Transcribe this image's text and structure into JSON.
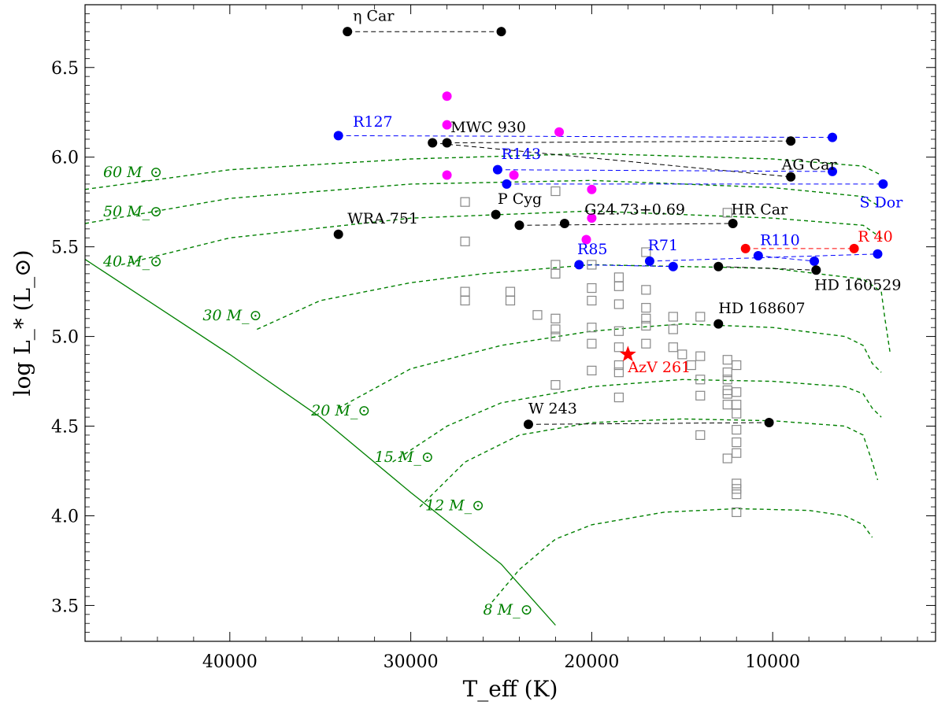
{
  "chart_data": {
    "type": "scatter",
    "title": "",
    "xlabel": "T_eff (K)",
    "ylabel": "log L_* (L_⊙)",
    "xlim": [
      48000,
      1000
    ],
    "ylim": [
      3.3,
      6.85
    ],
    "x_ticks": [
      40000,
      30000,
      20000,
      10000
    ],
    "y_ticks": [
      3.5,
      4.0,
      4.5,
      5.0,
      5.5,
      6.0,
      6.5
    ],
    "x_tick_labels": [
      "40000",
      "30000",
      "20000",
      "10000"
    ],
    "y_tick_labels": [
      "3.5",
      "4.0",
      "4.5",
      "5.0",
      "5.5",
      "6.0",
      "6.5"
    ],
    "colors": {
      "black": "#000000",
      "blue": "#0000ff",
      "red": "#ff0000",
      "magenta": "#ff00ff",
      "green": "#008000",
      "gray": "#888888"
    },
    "zams": [
      [
        48000,
        5.43
      ],
      [
        40000,
        4.9
      ],
      [
        35000,
        4.55
      ],
      [
        30000,
        4.13
      ],
      [
        25000,
        3.73
      ],
      [
        22000,
        3.39
      ]
    ],
    "tracks": [
      {
        "label": "60 M_⊙",
        "mass": "60",
        "points": [
          [
            48000,
            5.82
          ],
          [
            40000,
            5.93
          ],
          [
            30000,
            5.99
          ],
          [
            20000,
            6.02
          ],
          [
            10000,
            5.99
          ],
          [
            5000,
            5.95
          ],
          [
            4000,
            5.9
          ]
        ]
      },
      {
        "label": "50 M_⊙",
        "mass": "50",
        "points": [
          [
            48000,
            5.63
          ],
          [
            40000,
            5.77
          ],
          [
            30000,
            5.85
          ],
          [
            20000,
            5.87
          ],
          [
            10000,
            5.83
          ],
          [
            5000,
            5.78
          ],
          [
            4000,
            5.72
          ]
        ]
      },
      {
        "label": "40 M_⊙",
        "mass": "40",
        "points": [
          [
            46000,
            5.4
          ],
          [
            40000,
            5.55
          ],
          [
            30000,
            5.66
          ],
          [
            20000,
            5.7
          ],
          [
            10000,
            5.66
          ],
          [
            5000,
            5.62
          ],
          [
            4000,
            5.55
          ]
        ]
      },
      {
        "label": "30 M_⊙",
        "mass": "30",
        "points": [
          [
            38500,
            5.04
          ],
          [
            35000,
            5.2
          ],
          [
            30000,
            5.3
          ],
          [
            26000,
            5.35
          ],
          [
            20000,
            5.4
          ],
          [
            10000,
            5.38
          ],
          [
            5000,
            5.32
          ],
          [
            4000,
            5.25
          ],
          [
            3800,
            5.1
          ],
          [
            3500,
            4.9
          ]
        ]
      },
      {
        "label": "20 M_⊙",
        "mass": "20",
        "points": [
          [
            34000,
            4.6
          ],
          [
            30000,
            4.82
          ],
          [
            25000,
            4.95
          ],
          [
            20000,
            5.03
          ],
          [
            15000,
            5.07
          ],
          [
            10000,
            5.05
          ],
          [
            6000,
            5.0
          ],
          [
            5000,
            4.95
          ],
          [
            4500,
            4.85
          ],
          [
            4000,
            4.8
          ]
        ]
      },
      {
        "label": "15 M_⊙",
        "mass": "15",
        "points": [
          [
            31000,
            4.3
          ],
          [
            28000,
            4.5
          ],
          [
            25000,
            4.63
          ],
          [
            20000,
            4.72
          ],
          [
            15000,
            4.76
          ],
          [
            10000,
            4.75
          ],
          [
            6000,
            4.72
          ],
          [
            5000,
            4.68
          ],
          [
            4500,
            4.6
          ],
          [
            4000,
            4.55
          ]
        ]
      },
      {
        "label": "12 M_⊙",
        "mass": "12",
        "points": [
          [
            29500,
            4.05
          ],
          [
            27000,
            4.3
          ],
          [
            24000,
            4.45
          ],
          [
            20000,
            4.52
          ],
          [
            15000,
            4.54
          ],
          [
            10000,
            4.53
          ],
          [
            6000,
            4.5
          ],
          [
            5000,
            4.45
          ],
          [
            4500,
            4.3
          ],
          [
            4200,
            4.2
          ]
        ]
      },
      {
        "label": "8 M_⊙",
        "mass": "8",
        "points": [
          [
            25500,
            3.52
          ],
          [
            24000,
            3.7
          ],
          [
            22000,
            3.87
          ],
          [
            20000,
            3.95
          ],
          [
            16000,
            4.02
          ],
          [
            12000,
            4.04
          ],
          [
            8000,
            4.03
          ],
          [
            6000,
            4.0
          ],
          [
            5000,
            3.95
          ],
          [
            4500,
            3.88
          ]
        ]
      }
    ],
    "track_labels": [
      {
        "text": "60 M_⊙",
        "x": 47000,
        "y": 5.89
      },
      {
        "text": "50 M_⊙",
        "x": 47000,
        "y": 5.67
      },
      {
        "text": "40 M_⊙",
        "x": 47000,
        "y": 5.39
      },
      {
        "text": "30 M_⊙",
        "x": 41500,
        "y": 5.09
      },
      {
        "text": "20 M_⊙",
        "x": 35500,
        "y": 4.56
      },
      {
        "text": "15 M_⊙",
        "x": 32000,
        "y": 4.3
      },
      {
        "text": "12 M_⊙",
        "x": 29200,
        "y": 4.03
      },
      {
        "text": "8 M_⊙",
        "x": 26000,
        "y": 3.45
      }
    ],
    "stars": [
      {
        "name": "η Car",
        "color": "black",
        "points": [
          [
            33500,
            6.7
          ],
          [
            25000,
            6.7
          ]
        ],
        "label_pos": [
          33200,
          6.76
        ]
      },
      {
        "name": "MWC 930",
        "color": "black",
        "points": [
          [
            28000,
            6.08
          ],
          [
            9000,
            6.09
          ]
        ],
        "label_pos": [
          27800,
          6.14
        ]
      },
      {
        "name": "AG Car",
        "color": "black",
        "points": [
          [
            28800,
            6.08
          ],
          [
            9000,
            5.89
          ]
        ],
        "label_pos": [
          9500,
          5.93
        ]
      },
      {
        "name": "R127",
        "color": "blue",
        "points": [
          [
            34000,
            6.12
          ],
          [
            6700,
            6.11
          ]
        ],
        "label_pos": [
          33200,
          6.17
        ]
      },
      {
        "name": "R143",
        "color": "blue",
        "points": [
          [
            25200,
            5.93
          ],
          [
            6700,
            5.92
          ]
        ],
        "label_pos": [
          25000,
          5.99
        ]
      },
      {
        "name": "S Dor",
        "color": "blue",
        "points": [
          [
            24700,
            5.85
          ],
          [
            3900,
            5.85
          ]
        ],
        "label_pos": [
          5200,
          5.72
        ]
      },
      {
        "name": "WRA 751",
        "color": "black",
        "points": [
          [
            34000,
            5.57
          ]
        ],
        "label_pos": [
          33500,
          5.63
        ]
      },
      {
        "name": "P Cyg",
        "color": "black",
        "points": [
          [
            25300,
            5.68
          ]
        ],
        "label_pos": [
          25200,
          5.74
        ]
      },
      {
        "name": "G24.73+0.69",
        "color": "black",
        "points": [
          [
            24000,
            5.62
          ],
          [
            12200,
            5.63
          ]
        ],
        "label_pos": [
          20400,
          5.68
        ]
      },
      {
        "name": "HR Car",
        "color": "black",
        "points": [
          [
            21500,
            5.63
          ]
        ],
        "label_pos": [
          12300,
          5.68
        ]
      },
      {
        "name": "R110",
        "color": "blue",
        "points": [
          [
            10800,
            5.45
          ],
          [
            7700,
            5.42
          ]
        ],
        "label_pos": [
          10700,
          5.51
        ]
      },
      {
        "name": "R 40",
        "color": "red",
        "points": [
          [
            11500,
            5.49
          ],
          [
            5500,
            5.49
          ]
        ],
        "label_pos": [
          5300,
          5.53
        ]
      },
      {
        "name": "R85",
        "color": "blue",
        "points": [
          [
            20700,
            5.4
          ],
          [
            15500,
            5.39
          ]
        ],
        "label_pos": [
          20800,
          5.46
        ]
      },
      {
        "name": "R71",
        "color": "blue",
        "points": [
          [
            16800,
            5.42
          ],
          [
            4200,
            5.46
          ]
        ],
        "label_pos": [
          16900,
          5.48
        ]
      },
      {
        "name": "HD 160529",
        "color": "black",
        "points": [
          [
            13000,
            5.39
          ],
          [
            7600,
            5.37
          ]
        ],
        "label_pos": [
          7700,
          5.26
        ]
      },
      {
        "name": "HD 168607",
        "color": "black",
        "points": [
          [
            13000,
            5.07
          ]
        ],
        "label_pos": [
          13000,
          5.13
        ]
      },
      {
        "name": "W 243",
        "color": "black",
        "points": [
          [
            23500,
            4.51
          ],
          [
            10200,
            4.52
          ]
        ],
        "label_pos": [
          23500,
          4.57
        ]
      },
      {
        "name": "AzV 261",
        "color": "red",
        "points": [
          [
            18000,
            4.9
          ]
        ],
        "label_pos": [
          18000,
          4.8
        ],
        "marker": "star"
      }
    ],
    "magenta_points": [
      [
        28000,
        6.34
      ],
      [
        28000,
        6.18
      ],
      [
        21800,
        6.14
      ],
      [
        28000,
        5.9
      ],
      [
        24300,
        5.9
      ],
      [
        20000,
        5.82
      ],
      [
        20300,
        5.54
      ],
      [
        20000,
        5.66
      ]
    ],
    "gray_squares": [
      [
        27000,
        5.75
      ],
      [
        22000,
        5.81
      ],
      [
        27000,
        5.53
      ],
      [
        12500,
        5.69
      ],
      [
        27000,
        5.25
      ],
      [
        27000,
        5.2
      ],
      [
        24500,
        5.25
      ],
      [
        24500,
        5.2
      ],
      [
        23000,
        5.12
      ],
      [
        22000,
        5.4
      ],
      [
        22000,
        5.35
      ],
      [
        22000,
        5.1
      ],
      [
        22000,
        5.04
      ],
      [
        22000,
        5.0
      ],
      [
        22000,
        4.73
      ],
      [
        20000,
        5.4
      ],
      [
        20000,
        5.27
      ],
      [
        20000,
        5.2
      ],
      [
        20000,
        5.05
      ],
      [
        20000,
        4.96
      ],
      [
        20000,
        4.81
      ],
      [
        18500,
        5.33
      ],
      [
        18500,
        5.28
      ],
      [
        18500,
        5.18
      ],
      [
        18500,
        5.03
      ],
      [
        18500,
        4.94
      ],
      [
        18500,
        4.84
      ],
      [
        18500,
        4.8
      ],
      [
        18500,
        4.66
      ],
      [
        17000,
        5.47
      ],
      [
        17000,
        5.26
      ],
      [
        17000,
        5.16
      ],
      [
        17000,
        5.1
      ],
      [
        17000,
        5.06
      ],
      [
        17000,
        4.96
      ],
      [
        15500,
        5.11
      ],
      [
        15500,
        5.04
      ],
      [
        15500,
        4.94
      ],
      [
        15000,
        4.9
      ],
      [
        14500,
        4.84
      ],
      [
        14000,
        4.76
      ],
      [
        14000,
        4.67
      ],
      [
        14000,
        4.45
      ],
      [
        14000,
        4.89
      ],
      [
        14000,
        5.11
      ],
      [
        12500,
        4.87
      ],
      [
        12500,
        4.8
      ],
      [
        12500,
        4.76
      ],
      [
        12500,
        4.7
      ],
      [
        12500,
        4.62
      ],
      [
        12500,
        4.32
      ],
      [
        12000,
        4.84
      ],
      [
        12000,
        4.69
      ],
      [
        12000,
        4.62
      ],
      [
        12000,
        4.57
      ],
      [
        12000,
        4.48
      ],
      [
        12000,
        4.41
      ],
      [
        12000,
        4.35
      ],
      [
        12000,
        4.18
      ],
      [
        12000,
        4.15
      ],
      [
        12000,
        4.12
      ],
      [
        12000,
        4.02
      ],
      [
        12500,
        4.68
      ]
    ]
  }
}
